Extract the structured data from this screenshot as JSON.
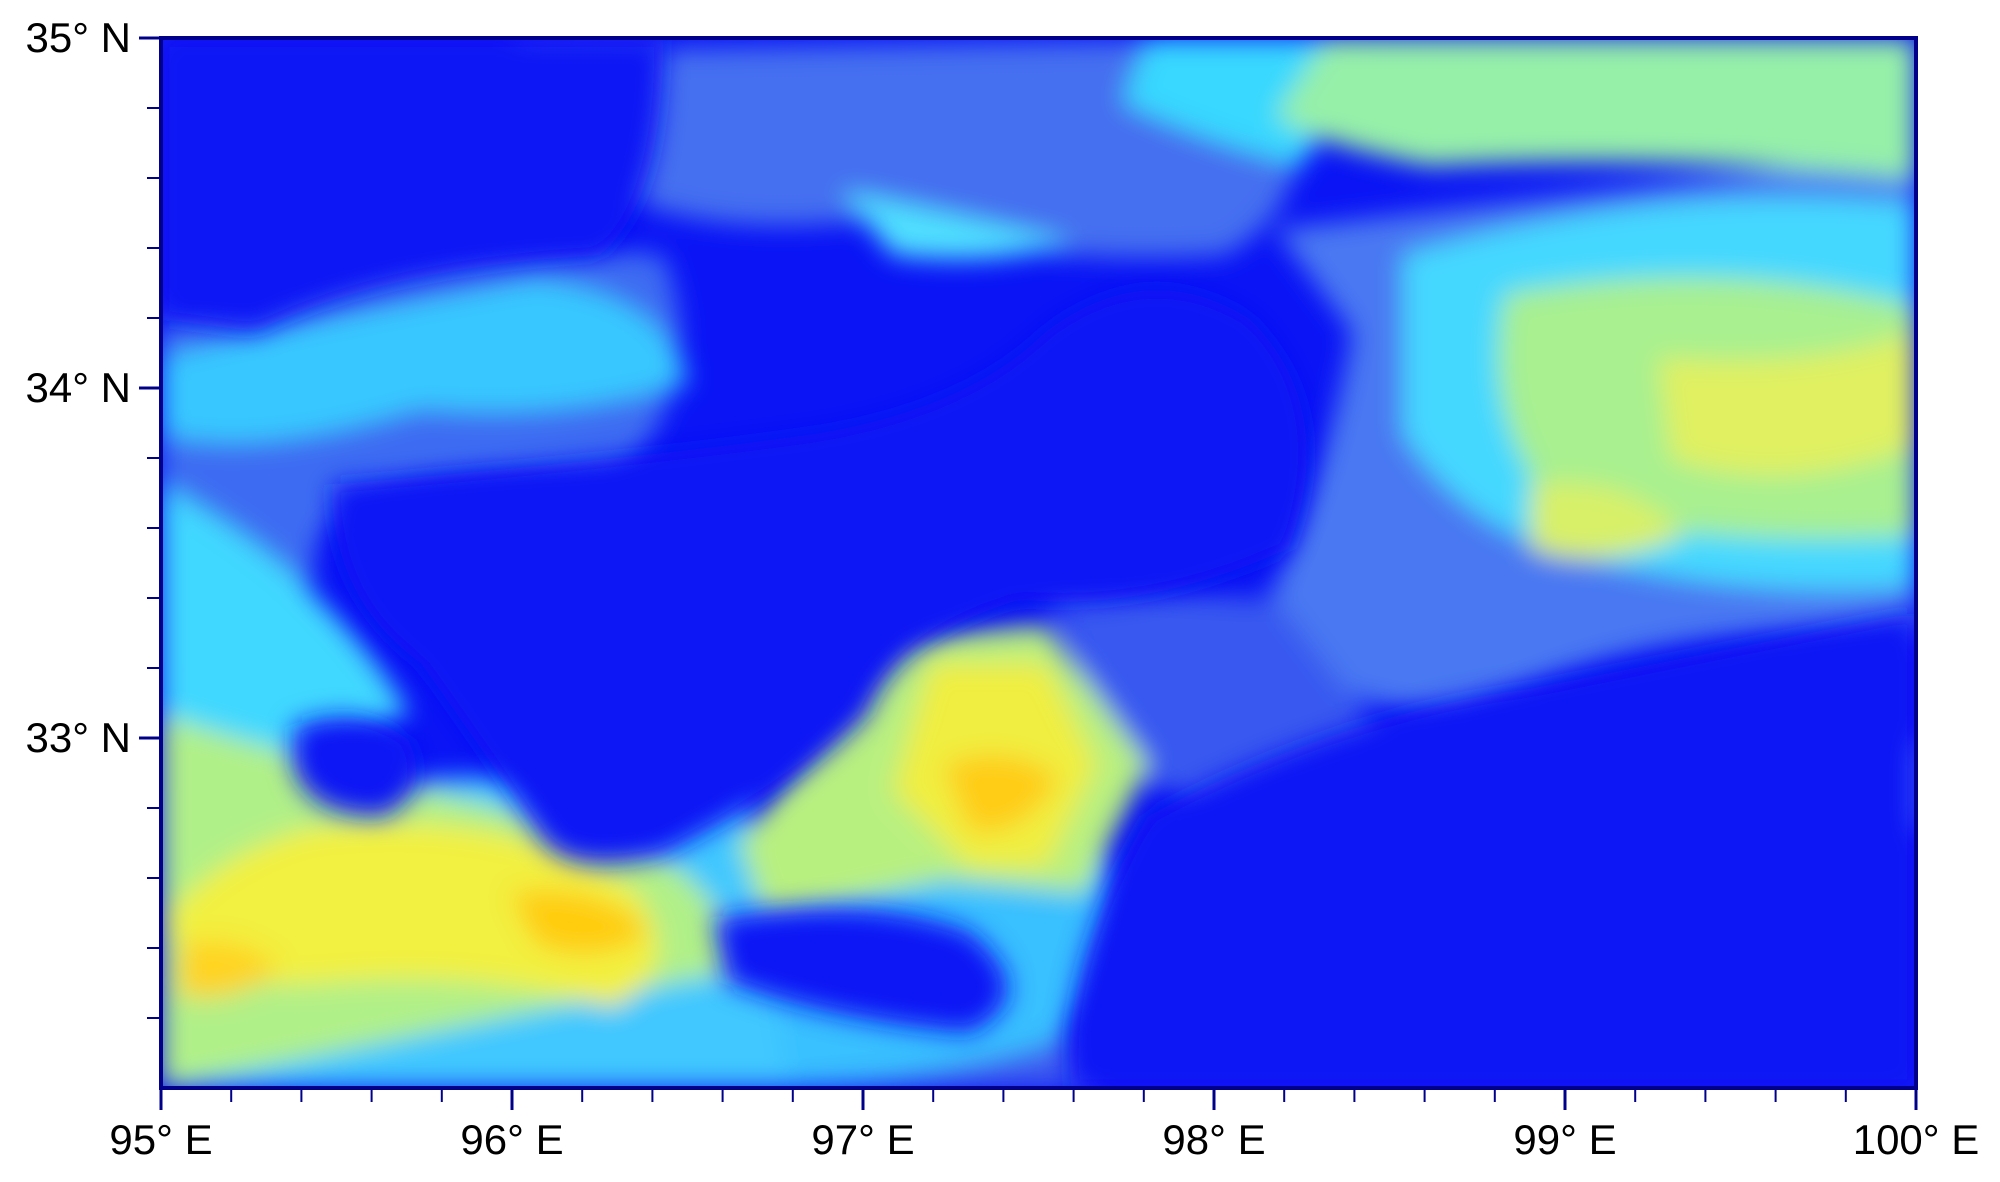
{
  "chart_data": {
    "type": "raster-map",
    "xlim": [
      95,
      100
    ],
    "ylim": [
      32,
      35
    ],
    "xticks": [
      {
        "value": 95,
        "label": "95° E"
      },
      {
        "value": 96,
        "label": "96° E"
      },
      {
        "value": 97,
        "label": "97° E"
      },
      {
        "value": 98,
        "label": "98° E"
      },
      {
        "value": 99,
        "label": "99° E"
      },
      {
        "value": 100,
        "label": "100° E"
      }
    ],
    "yticks": [
      {
        "value": 33,
        "label": "33° N"
      },
      {
        "value": 34,
        "label": "34° N"
      },
      {
        "value": 35,
        "label": "35° N"
      }
    ],
    "xminorticks": [
      95.2,
      95.4,
      95.6,
      95.8,
      96.2,
      96.4,
      96.6,
      96.8,
      97.2,
      97.4,
      97.6,
      97.8,
      98.2,
      98.4,
      98.6,
      98.8,
      99.2,
      99.4,
      99.6,
      99.8
    ],
    "yminorticks": [
      32.2,
      32.4,
      32.6,
      32.8,
      33.2,
      33.4,
      33.6,
      33.8,
      34.2,
      34.4,
      34.6,
      34.8
    ],
    "frame_color": "#00008b"
  }
}
